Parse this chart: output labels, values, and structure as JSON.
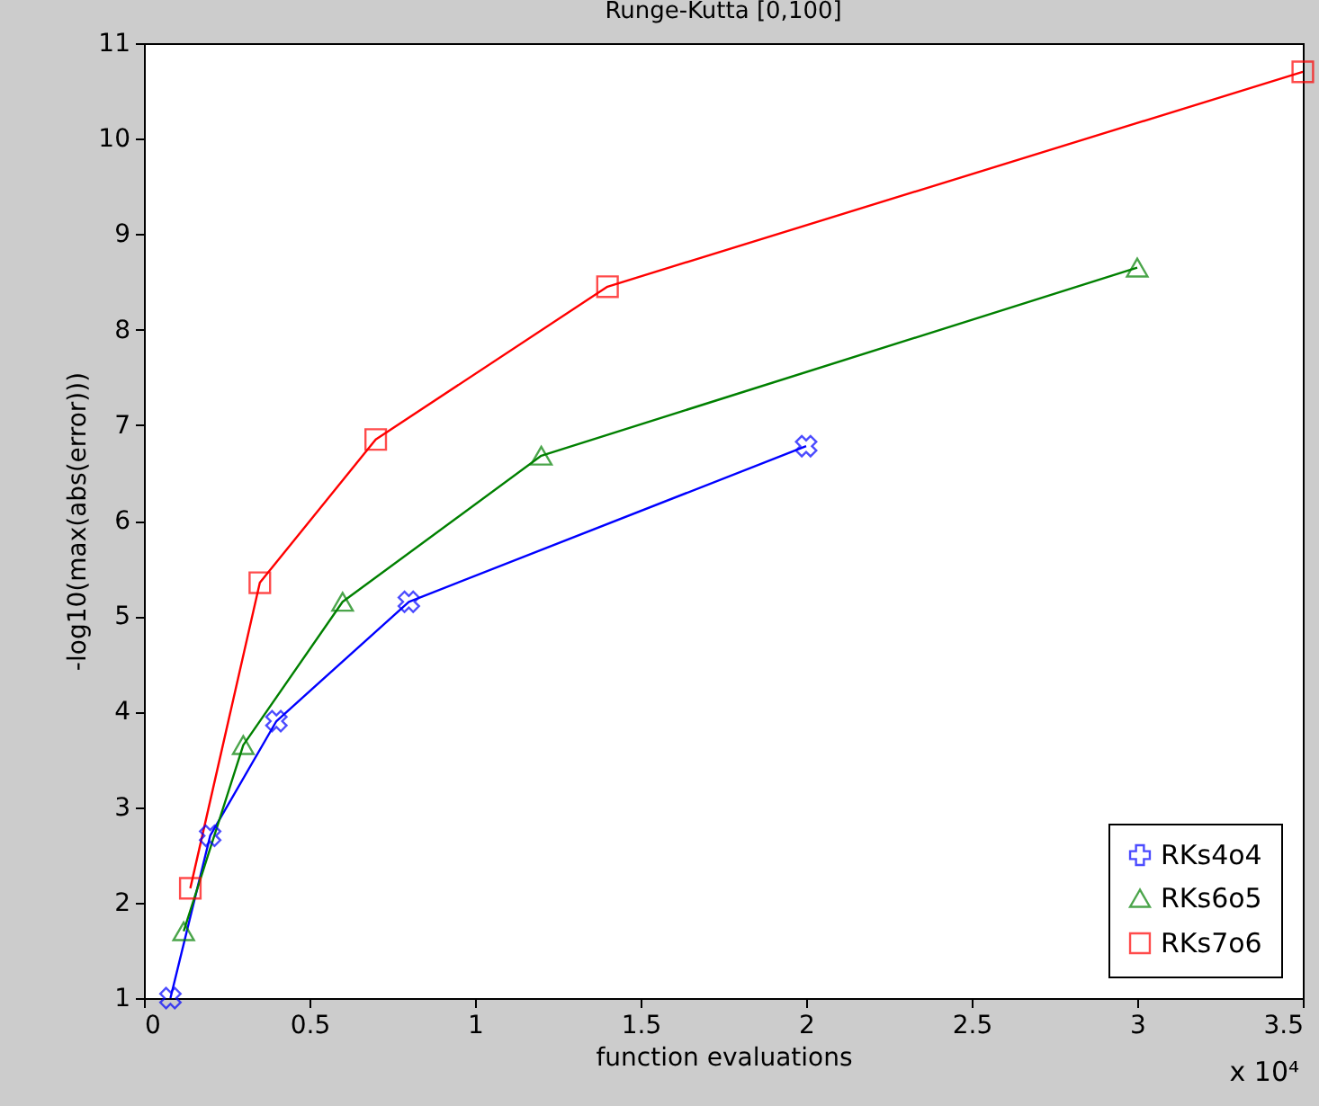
{
  "chart_data": {
    "type": "line",
    "title": "Runge-Kutta [0,100]",
    "xlabel": "function evaluations",
    "ylabel": "-log10(max(abs(error)))",
    "xlim": [
      0,
      3.5
    ],
    "xticks": [
      0,
      0.5,
      1,
      1.5,
      2,
      2.5,
      3,
      3.5
    ],
    "ylim": [
      1,
      11
    ],
    "yticks": [
      1,
      2,
      3,
      4,
      5,
      6,
      7,
      8,
      9,
      10,
      11
    ],
    "grid": false,
    "legend": "bottom right",
    "line_style": "solid",
    "annotations": [
      "x 10⁴"
    ],
    "series": [
      {
        "name": "RKs4o4",
        "color": "#0000ff",
        "marker": "cross",
        "x": [
          0.08,
          0.2,
          0.4,
          0.8,
          2.0
        ],
        "values": [
          1.0,
          2.7,
          3.9,
          5.15,
          6.78
        ]
      },
      {
        "name": "RKs6o5",
        "color": "#008000",
        "marker": "triangle",
        "x": [
          0.12,
          0.3,
          0.6,
          1.2,
          3.0
        ],
        "values": [
          1.7,
          3.65,
          5.15,
          6.68,
          8.65
        ]
      },
      {
        "name": "RKs7o6",
        "color": "#ff0000",
        "marker": "square",
        "x": [
          0.14,
          0.35,
          0.7,
          1.4,
          3.5
        ],
        "values": [
          2.15,
          5.35,
          6.85,
          8.45,
          10.7
        ]
      }
    ]
  }
}
